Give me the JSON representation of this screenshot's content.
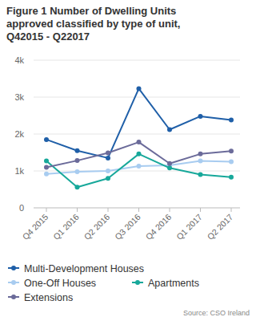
{
  "chart_data": {
    "type": "line",
    "title": "Figure 1 Number of Dwelling Units approved classified by type of unit, Q42015 - Q22017",
    "source": "Source: CSO Ireland",
    "categories": [
      "Q4 2015",
      "Q1 2016",
      "Q2 2016",
      "Q3 2016",
      "Q4 2016",
      "Q1 2017",
      "Q2 2017"
    ],
    "series": [
      {
        "name": "Multi-Development Houses",
        "color": "#1f5fa8",
        "values": [
          1850,
          1550,
          1350,
          3230,
          2120,
          2480,
          2380
        ]
      },
      {
        "name": "One-Off Houses",
        "color": "#a8ccf0",
        "values": [
          920,
          980,
          1000,
          1130,
          1150,
          1270,
          1250
        ]
      },
      {
        "name": "Apartments",
        "color": "#17a89a",
        "values": [
          1270,
          560,
          800,
          1460,
          1080,
          900,
          830
        ]
      },
      {
        "name": "Extensions",
        "color": "#6b6b9a",
        "values": [
          1100,
          1280,
          1490,
          1780,
          1200,
          1460,
          1540
        ]
      }
    ],
    "ylim": [
      0,
      4000
    ],
    "yticks": [
      0,
      {
        "value": 1000,
        "label": "1k"
      },
      {
        "value": 2000,
        "label": "2k"
      },
      {
        "value": 3000,
        "label": "3k"
      },
      {
        "value": 4000,
        "label": "4k"
      }
    ],
    "grid": true,
    "legend": "bottom",
    "marker": "circle"
  }
}
